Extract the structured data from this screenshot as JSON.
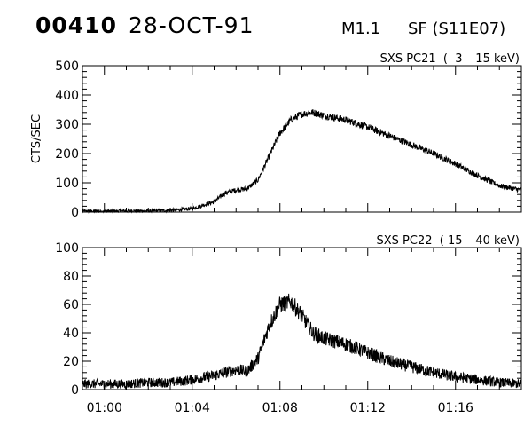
{
  "header": {
    "event_id": "00410",
    "date": "28-OCT-91",
    "flare_class": "M1.1",
    "flare_location": "SF (S11E07)"
  },
  "chart_data": [
    {
      "type": "line",
      "title": "SXS PC21  (  3 – 15 keV)",
      "ylabel": "CTS/SEC",
      "xlabel": "",
      "xlim": [
        "00:59",
        "01:19"
      ],
      "ylim": [
        0,
        500
      ],
      "yticks": [
        0,
        100,
        200,
        300,
        400,
        500
      ],
      "xticks": [
        "01:00",
        "01:04",
        "01:08",
        "01:12",
        "01:16"
      ],
      "show_xtick_labels": false,
      "grid": false,
      "series": [
        {
          "x": [
            "00:59",
            "01:00",
            "01:01",
            "01:02",
            "01:03",
            "01:04",
            "01:05",
            "01:05:30",
            "01:06",
            "01:06:30",
            "01:07",
            "01:07:30",
            "01:08",
            "01:08:30",
            "01:09",
            "01:09:30",
            "01:10",
            "01:11",
            "01:12",
            "01:13",
            "01:14",
            "01:15",
            "01:16",
            "01:17",
            "01:18",
            "01:19"
          ],
          "y": [
            3,
            3,
            4,
            4,
            6,
            12,
            35,
            65,
            75,
            80,
            110,
            190,
            270,
            315,
            335,
            340,
            330,
            315,
            290,
            260,
            230,
            200,
            165,
            125,
            90,
            75
          ],
          "noise": 12
        }
      ]
    },
    {
      "type": "line",
      "title": "SXS PC22  ( 15 – 40 keV)",
      "ylabel": "",
      "xlabel": "",
      "xlim": [
        "00:59",
        "01:19"
      ],
      "ylim": [
        0,
        100
      ],
      "yticks": [
        0,
        20,
        40,
        60,
        80,
        100
      ],
      "xticks": [
        "01:00",
        "01:04",
        "01:08",
        "01:12",
        "01:16"
      ],
      "show_xtick_labels": true,
      "grid": false,
      "series": [
        {
          "x": [
            "00:59",
            "01:00",
            "01:01",
            "01:02",
            "01:03",
            "01:04",
            "01:05",
            "01:06",
            "01:06:30",
            "01:07",
            "01:07:30",
            "01:08",
            "01:08:30",
            "01:09",
            "01:09:30",
            "01:10",
            "01:11",
            "01:12",
            "01:13",
            "01:14",
            "01:15",
            "01:16",
            "01:17",
            "01:18",
            "01:19"
          ],
          "y": [
            4,
            4,
            4,
            5,
            5,
            7,
            10,
            14,
            13,
            22,
            45,
            60,
            62,
            52,
            40,
            36,
            32,
            26,
            20,
            16,
            12,
            9,
            7,
            5,
            4
          ],
          "noise": 6
        }
      ]
    }
  ]
}
